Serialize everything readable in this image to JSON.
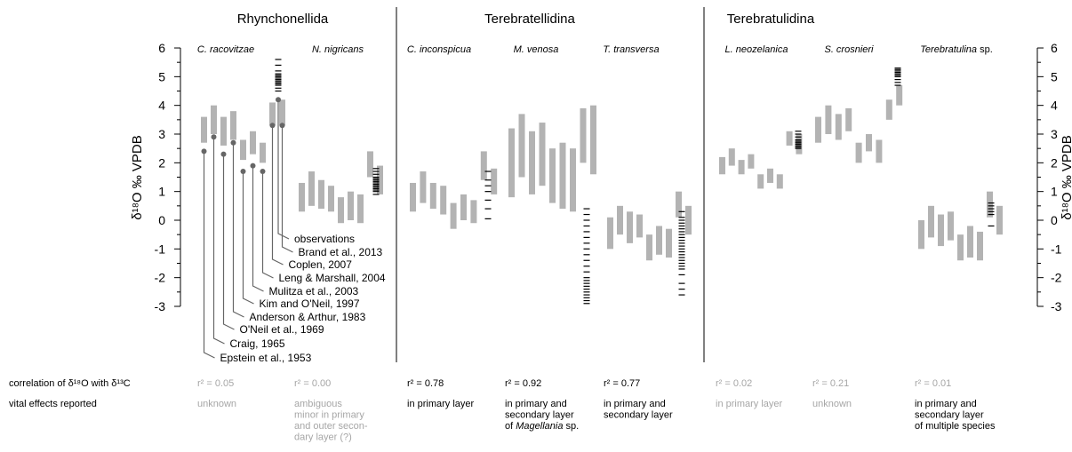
{
  "chart_data": {
    "type": "range",
    "ylabel": "δ¹⁸O ‰ VPDB",
    "ylim": [
      -3,
      6
    ],
    "yticks": [
      "6",
      "5",
      "4",
      "3",
      "2",
      "1",
      "0",
      "-1",
      "-2",
      "-3"
    ],
    "groups": [
      "Rhynchonellida",
      "Terebratellidina",
      "Terebratulidina"
    ],
    "species": [
      {
        "italic": "C. racovitzae",
        "rest": ""
      },
      {
        "italic": "N. nigricans",
        "rest": ""
      },
      {
        "italic": "C. inconspicua",
        "rest": ""
      },
      {
        "italic": "M. venosa",
        "rest": ""
      },
      {
        "italic": "T. transversa",
        "rest": ""
      },
      {
        "italic": "L. neozelanica",
        "rest": ""
      },
      {
        "italic": "S. crosnieri",
        "rest": ""
      },
      {
        "italic": "Terebratulina",
        "rest": " sp."
      }
    ],
    "references": [
      "Epstein et al., 1953",
      "Craig, 1965",
      "O'Neil et al., 1969",
      "Anderson & Arthur, 1983",
      "Kim and O'Neil, 1997",
      "Mulitza et al., 2003",
      "Leng & Marshall, 2004",
      "Coplen, 2007",
      "Brand et al., 2013",
      "observations"
    ],
    "equilibrium_ranges": [
      [
        [
          2.7,
          3.6
        ],
        [
          3.0,
          4.0
        ],
        [
          2.6,
          3.6
        ],
        [
          2.8,
          3.8
        ],
        [
          2.1,
          2.8
        ],
        [
          2.3,
          3.1
        ],
        [
          2.0,
          2.7
        ],
        [
          3.3,
          4.1
        ],
        [
          3.3,
          4.2
        ]
      ],
      [
        [
          0.3,
          1.3
        ],
        [
          0.5,
          1.7
        ],
        [
          0.4,
          1.4
        ],
        [
          0.3,
          1.2
        ],
        [
          -0.1,
          0.8
        ],
        [
          0.0,
          1.0
        ],
        [
          -0.1,
          0.9
        ],
        [
          1.5,
          2.4
        ],
        [
          0.9,
          1.9
        ]
      ],
      [
        [
          0.3,
          1.3
        ],
        [
          0.6,
          1.7
        ],
        [
          0.4,
          1.3
        ],
        [
          0.2,
          1.2
        ],
        [
          -0.3,
          0.6
        ],
        [
          0.0,
          0.9
        ],
        [
          -0.1,
          0.7
        ],
        [
          1.4,
          2.4
        ],
        [
          0.9,
          1.8
        ]
      ],
      [
        [
          0.8,
          3.2
        ],
        [
          1.5,
          3.7
        ],
        [
          0.9,
          3.1
        ],
        [
          1.2,
          3.4
        ],
        [
          0.6,
          2.5
        ],
        [
          0.4,
          2.7
        ],
        [
          0.3,
          2.5
        ],
        [
          2.0,
          3.9
        ],
        [
          1.6,
          4.0
        ]
      ],
      [
        [
          -1.0,
          0.1
        ],
        [
          -0.5,
          0.5
        ],
        [
          -0.8,
          0.3
        ],
        [
          -0.6,
          0.2
        ],
        [
          -1.4,
          -0.5
        ],
        [
          -1.2,
          -0.2
        ],
        [
          -1.3,
          -0.3
        ],
        [
          0.1,
          1.0
        ],
        [
          -0.5,
          0.5
        ]
      ],
      [
        [
          1.6,
          2.2
        ],
        [
          1.9,
          2.5
        ],
        [
          1.6,
          2.1
        ],
        [
          1.8,
          2.3
        ],
        [
          1.1,
          1.6
        ],
        [
          1.3,
          1.8
        ],
        [
          1.1,
          1.6
        ],
        [
          2.6,
          3.1
        ],
        [
          2.3,
          3.0
        ]
      ],
      [
        [
          2.7,
          3.6
        ],
        [
          3.0,
          4.0
        ],
        [
          2.8,
          3.7
        ],
        [
          3.1,
          3.9
        ],
        [
          2.0,
          2.7
        ],
        [
          2.4,
          3.0
        ],
        [
          2.0,
          2.8
        ],
        [
          3.5,
          4.2
        ],
        [
          4.0,
          4.7
        ]
      ],
      [
        [
          -1.0,
          0.0
        ],
        [
          -0.6,
          0.5
        ],
        [
          -0.9,
          0.2
        ],
        [
          -0.7,
          0.3
        ],
        [
          -1.4,
          -0.5
        ],
        [
          -1.3,
          -0.2
        ],
        [
          -1.4,
          -0.4
        ],
        [
          0.1,
          1.0
        ],
        [
          -0.5,
          0.5
        ]
      ]
    ],
    "observations": [
      [
        4.5,
        4.6,
        4.7,
        4.75,
        4.8,
        4.85,
        4.9,
        4.95,
        5.0,
        5.05,
        5.1,
        5.2,
        5.4,
        5.6
      ],
      [
        0.9,
        1.0,
        1.05,
        1.1,
        1.15,
        1.2,
        1.25,
        1.3,
        1.35,
        1.4,
        1.45,
        1.5,
        1.6,
        1.7,
        1.8
      ],
      [
        0.05,
        0.4,
        0.7,
        1.0,
        1.2,
        1.4,
        1.7
      ],
      [
        -2.9,
        -2.8,
        -2.7,
        -2.6,
        -2.5,
        -2.4,
        -2.3,
        -2.2,
        -2.1,
        -2.0,
        -1.8,
        -1.6,
        -1.4,
        -1.2,
        -1.0,
        -0.8,
        -0.6,
        -0.4,
        -0.2,
        0.0,
        0.2,
        0.4
      ],
      [
        -2.6,
        -2.4,
        -2.2,
        -1.9,
        -1.7,
        -1.6,
        -1.5,
        -1.4,
        -1.3,
        -1.2,
        -1.1,
        -1.0,
        -0.9,
        -0.8,
        -0.7,
        -0.6,
        -0.5,
        -0.4,
        -0.3,
        -0.2,
        -0.1,
        0.0,
        0.1,
        0.3
      ],
      [
        2.5,
        2.55,
        2.6,
        2.65,
        2.7,
        2.75,
        2.8,
        2.9,
        3.0,
        3.1
      ],
      [
        4.7,
        4.8,
        4.9,
        5.0,
        5.05,
        5.1,
        5.15,
        5.2,
        5.25,
        5.3
      ],
      [
        -0.2,
        0.2,
        0.3,
        0.4,
        0.5,
        0.6
      ]
    ],
    "reference_points": [
      2.4,
      2.9,
      2.3,
      2.7,
      1.7,
      1.9,
      1.7,
      3.3,
      3.3,
      4.2
    ],
    "correlation_row": {
      "label": "correlation of δ¹⁸O with δ¹³C",
      "values": [
        "r² = 0.05",
        "r² = 0.00",
        "r² = 0.78",
        "r² = 0.92",
        "r² = 0.77",
        "r² = 0.02",
        "r² = 0.21",
        "r² = 0.01"
      ],
      "highlight": [
        false,
        false,
        true,
        true,
        true,
        false,
        false,
        false
      ]
    },
    "vital_row": {
      "label": "vital effects reported",
      "values": [
        [
          {
            "t": "unknown"
          }
        ],
        [
          {
            "t": "ambiguous"
          },
          {
            "t": "minor in primary"
          },
          {
            "t": "and outer secon-"
          },
          {
            "t": "dary layer (?)"
          }
        ],
        [
          {
            "t": "in primary layer"
          }
        ],
        [
          {
            "t": "in primary and"
          },
          {
            "t": "secondary layer"
          },
          {
            "t": "of ",
            "em": "Magellania",
            "rest": " sp."
          }
        ],
        [
          {
            "t": "in primary and"
          },
          {
            "t": "secondary layer"
          }
        ],
        [
          {
            "t": "in primary layer"
          }
        ],
        [
          {
            "t": "unknown"
          }
        ],
        [
          {
            "t": "in primary and"
          },
          {
            "t": "secondary layer"
          },
          {
            "t": "of multiple species"
          }
        ]
      ],
      "highlight": [
        false,
        false,
        true,
        true,
        true,
        false,
        false,
        true
      ]
    },
    "colors": {
      "range_bar": "#b3b3b3",
      "observation": "#000000",
      "reference_line": "#666666",
      "muted_text": "#a6a6a6",
      "text": "#000000"
    }
  }
}
